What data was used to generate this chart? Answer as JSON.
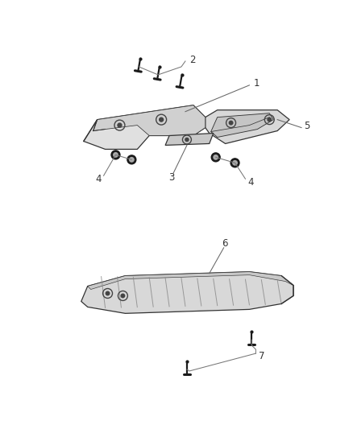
{
  "bg_color": "#ffffff",
  "line_color": "#333333",
  "label_color": "#333333",
  "label_fontsize": 8.5,
  "fig_width": 4.38,
  "fig_height": 5.33,
  "dpi": 100
}
